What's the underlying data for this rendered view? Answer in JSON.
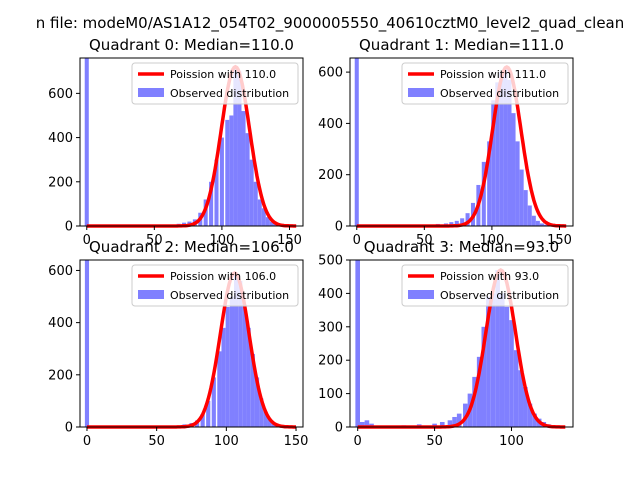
{
  "suptitle": "n file: modeM0/AS1A12_054T02_9000005550_40610cztM0_level2_quad_clean",
  "colors": {
    "histogram": "#8080ff",
    "fit_line": "#ff0000"
  },
  "chart_data": [
    {
      "type": "histogram+line",
      "title": "Quadrant 0: Median=110.0",
      "xlim": [
        -5,
        160
      ],
      "ylim": [
        0,
        760
      ],
      "xticks": [
        0,
        50,
        100,
        150
      ],
      "yticks": [
        0,
        200,
        400,
        600
      ],
      "median": 110.0,
      "sigma": 10.5,
      "legend": {
        "placement": "top-right",
        "entries": [
          "Poission with 110.0",
          "Observed distribution"
        ]
      },
      "histogram": [
        [
          0,
          760
        ],
        [
          68,
          10
        ],
        [
          72,
          15
        ],
        [
          76,
          20
        ],
        [
          80,
          30
        ],
        [
          84,
          60
        ],
        [
          88,
          120
        ],
        [
          92,
          200
        ],
        [
          96,
          300
        ],
        [
          100,
          400
        ],
        [
          104,
          480
        ],
        [
          107,
          500
        ],
        [
          110,
          720
        ],
        [
          113,
          700
        ],
        [
          116,
          520
        ],
        [
          119,
          420
        ],
        [
          122,
          300
        ],
        [
          125,
          200
        ],
        [
          128,
          120
        ],
        [
          131,
          80
        ],
        [
          134,
          40
        ],
        [
          137,
          20
        ],
        [
          140,
          10
        ],
        [
          143,
          5
        ]
      ]
    },
    {
      "type": "histogram+line",
      "title": "Quadrant 1: Median=111.0",
      "xlim": [
        -5,
        160
      ],
      "ylim": [
        0,
        655
      ],
      "xticks": [
        0,
        50,
        100,
        150
      ],
      "yticks": [
        0,
        200,
        400,
        600
      ],
      "median": 111.0,
      "sigma": 10.5,
      "legend": {
        "placement": "top-right",
        "entries": [
          "Poission with 111.0",
          "Observed distribution"
        ]
      },
      "histogram": [
        [
          0,
          655
        ],
        [
          50,
          5
        ],
        [
          60,
          8
        ],
        [
          66,
          10
        ],
        [
          70,
          15
        ],
        [
          74,
          20
        ],
        [
          78,
          30
        ],
        [
          82,
          50
        ],
        [
          86,
          90
        ],
        [
          90,
          160
        ],
        [
          94,
          250
        ],
        [
          98,
          330
        ],
        [
          101,
          490
        ],
        [
          104,
          560
        ],
        [
          107,
          600
        ],
        [
          110,
          620
        ],
        [
          113,
          570
        ],
        [
          116,
          440
        ],
        [
          119,
          330
        ],
        [
          122,
          220
        ],
        [
          125,
          140
        ],
        [
          128,
          80
        ],
        [
          131,
          40
        ],
        [
          134,
          20
        ],
        [
          137,
          10
        ],
        [
          140,
          5
        ]
      ]
    },
    {
      "type": "histogram+line",
      "title": "Quadrant 2: Median=106.0",
      "xlim": [
        -5,
        155
      ],
      "ylim": [
        0,
        640
      ],
      "xticks": [
        0,
        50,
        100,
        150
      ],
      "yticks": [
        0,
        200,
        400,
        600
      ],
      "median": 106.0,
      "sigma": 10.3,
      "legend": {
        "placement": "top-right",
        "entries": [
          "Poission with 106.0",
          "Observed distribution"
        ]
      },
      "histogram": [
        [
          0,
          640
        ],
        [
          70,
          10
        ],
        [
          75,
          15
        ],
        [
          79,
          25
        ],
        [
          83,
          50
        ],
        [
          87,
          100
        ],
        [
          91,
          190
        ],
        [
          95,
          290
        ],
        [
          98,
          380
        ],
        [
          101,
          460
        ],
        [
          104,
          500
        ],
        [
          107,
          590
        ],
        [
          110,
          560
        ],
        [
          113,
          470
        ],
        [
          116,
          380
        ],
        [
          119,
          280
        ],
        [
          122,
          190
        ],
        [
          125,
          110
        ],
        [
          128,
          60
        ],
        [
          131,
          30
        ],
        [
          134,
          15
        ],
        [
          137,
          5
        ]
      ]
    },
    {
      "type": "histogram+line",
      "title": "Quadrant 3: Median=93.0",
      "xlim": [
        -5,
        140
      ],
      "ylim": [
        0,
        500
      ],
      "xticks": [
        0,
        50,
        100
      ],
      "yticks": [
        0,
        100,
        200,
        300,
        400,
        500
      ],
      "median": 93.0,
      "sigma": 9.6,
      "legend": {
        "placement": "top-right",
        "entries": [
          "Poission with 93.0",
          "Observed distribution"
        ]
      },
      "histogram": [
        [
          0,
          500
        ],
        [
          3,
          15
        ],
        [
          6,
          20
        ],
        [
          9,
          10
        ],
        [
          30,
          5
        ],
        [
          40,
          8
        ],
        [
          50,
          10
        ],
        [
          55,
          15
        ],
        [
          60,
          20
        ],
        [
          63,
          30
        ],
        [
          66,
          40
        ],
        [
          70,
          70
        ],
        [
          73,
          100
        ],
        [
          76,
          150
        ],
        [
          79,
          210
        ],
        [
          82,
          300
        ],
        [
          85,
          390
        ],
        [
          88,
          400
        ],
        [
          91,
          470
        ],
        [
          94,
          400
        ],
        [
          97,
          360
        ],
        [
          100,
          320
        ],
        [
          103,
          230
        ],
        [
          106,
          170
        ],
        [
          109,
          120
        ],
        [
          112,
          70
        ],
        [
          115,
          40
        ],
        [
          118,
          25
        ],
        [
          121,
          15
        ],
        [
          124,
          8
        ]
      ]
    }
  ]
}
